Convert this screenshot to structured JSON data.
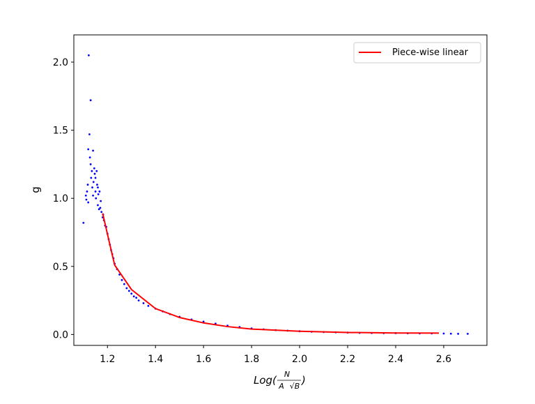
{
  "chart_data": {
    "type": "scatter",
    "xlim": [
      1.06,
      2.78
    ],
    "ylim": [
      -0.08,
      2.2
    ],
    "xticks": [
      "1.2",
      "1.4",
      "1.6",
      "1.8",
      "2.0",
      "2.2",
      "2.4",
      "2.6"
    ],
    "yticks": [
      "0.0",
      "0.5",
      "1.0",
      "1.5",
      "2.0"
    ],
    "xlabel": {
      "prefix": "Log(",
      "numerator": "N",
      "denominator_a": "A",
      "denominator_b": "√B",
      "suffix": ")"
    },
    "ylabel": "g",
    "legend": {
      "position": "top-right",
      "entries": [
        {
          "label": "Piece-wise linear",
          "color": "#ff0000"
        }
      ]
    },
    "grid": false,
    "series": [
      {
        "kind": "scatter",
        "color": "#0000ff",
        "points": [
          [
            1.1,
            0.82
          ],
          [
            1.11,
            1.02
          ],
          [
            1.112,
            0.99
          ],
          [
            1.115,
            1.05
          ],
          [
            1.118,
            1.1
          ],
          [
            1.12,
            0.97
          ],
          [
            1.12,
            1.36
          ],
          [
            1.122,
            2.05
          ],
          [
            1.125,
            1.47
          ],
          [
            1.127,
            1.3
          ],
          [
            1.13,
            1.72
          ],
          [
            1.13,
            1.25
          ],
          [
            1.132,
            1.15
          ],
          [
            1.135,
            1.2
          ],
          [
            1.137,
            1.08
          ],
          [
            1.14,
            1.35
          ],
          [
            1.14,
            1.02
          ],
          [
            1.142,
            1.12
          ],
          [
            1.145,
            1.22
          ],
          [
            1.147,
            1.18
          ],
          [
            1.15,
            1.05
          ],
          [
            1.15,
            1.15
          ],
          [
            1.152,
            1.0
          ],
          [
            1.155,
            1.2
          ],
          [
            1.157,
            1.1
          ],
          [
            1.16,
            0.95
          ],
          [
            1.16,
            1.08
          ],
          [
            1.162,
            1.03
          ],
          [
            1.165,
            0.92
          ],
          [
            1.167,
            1.05
          ],
          [
            1.17,
            0.93
          ],
          [
            1.172,
            0.98
          ],
          [
            1.175,
            0.9
          ],
          [
            1.18,
            0.86
          ],
          [
            1.182,
            0.88
          ],
          [
            1.185,
            0.84
          ],
          [
            1.19,
            0.8
          ],
          [
            1.195,
            0.79
          ],
          [
            1.2,
            0.74
          ],
          [
            1.205,
            0.7
          ],
          [
            1.21,
            0.66
          ],
          [
            1.215,
            0.62
          ],
          [
            1.22,
            0.59
          ],
          [
            1.225,
            0.56
          ],
          [
            1.23,
            0.52
          ],
          [
            1.24,
            0.48
          ],
          [
            1.25,
            0.44
          ],
          [
            1.26,
            0.4
          ],
          [
            1.27,
            0.37
          ],
          [
            1.28,
            0.34
          ],
          [
            1.29,
            0.32
          ],
          [
            1.3,
            0.3
          ],
          [
            1.31,
            0.28
          ],
          [
            1.32,
            0.27
          ],
          [
            1.33,
            0.25
          ],
          [
            1.35,
            0.23
          ],
          [
            1.37,
            0.21
          ],
          [
            1.4,
            0.19
          ],
          [
            1.43,
            0.17
          ],
          [
            1.46,
            0.15
          ],
          [
            1.5,
            0.13
          ],
          [
            1.55,
            0.11
          ],
          [
            1.6,
            0.095
          ],
          [
            1.65,
            0.08
          ],
          [
            1.7,
            0.065
          ],
          [
            1.75,
            0.055
          ],
          [
            1.8,
            0.045
          ],
          [
            1.85,
            0.038
          ],
          [
            1.9,
            0.032
          ],
          [
            1.95,
            0.028
          ],
          [
            2.0,
            0.024
          ],
          [
            2.05,
            0.02
          ],
          [
            2.1,
            0.018
          ],
          [
            2.15,
            0.016
          ],
          [
            2.2,
            0.014
          ],
          [
            2.25,
            0.012
          ],
          [
            2.3,
            0.011
          ],
          [
            2.35,
            0.01
          ],
          [
            2.4,
            0.01
          ],
          [
            2.45,
            0.009
          ],
          [
            2.5,
            0.008
          ],
          [
            2.55,
            0.008
          ],
          [
            2.6,
            0.007
          ],
          [
            2.63,
            0.006
          ],
          [
            2.66,
            0.005
          ],
          [
            2.7,
            0.005
          ]
        ]
      },
      {
        "kind": "line",
        "name": "Piece-wise linear",
        "color": "#ff0000",
        "points": [
          [
            1.18,
            0.89
          ],
          [
            1.21,
            0.66
          ],
          [
            1.23,
            0.51
          ],
          [
            1.3,
            0.33
          ],
          [
            1.4,
            0.19
          ],
          [
            1.5,
            0.125
          ],
          [
            1.6,
            0.085
          ],
          [
            1.7,
            0.058
          ],
          [
            1.8,
            0.04
          ],
          [
            2.0,
            0.024
          ],
          [
            2.2,
            0.015
          ],
          [
            2.4,
            0.011
          ],
          [
            2.58,
            0.01
          ]
        ]
      }
    ]
  }
}
